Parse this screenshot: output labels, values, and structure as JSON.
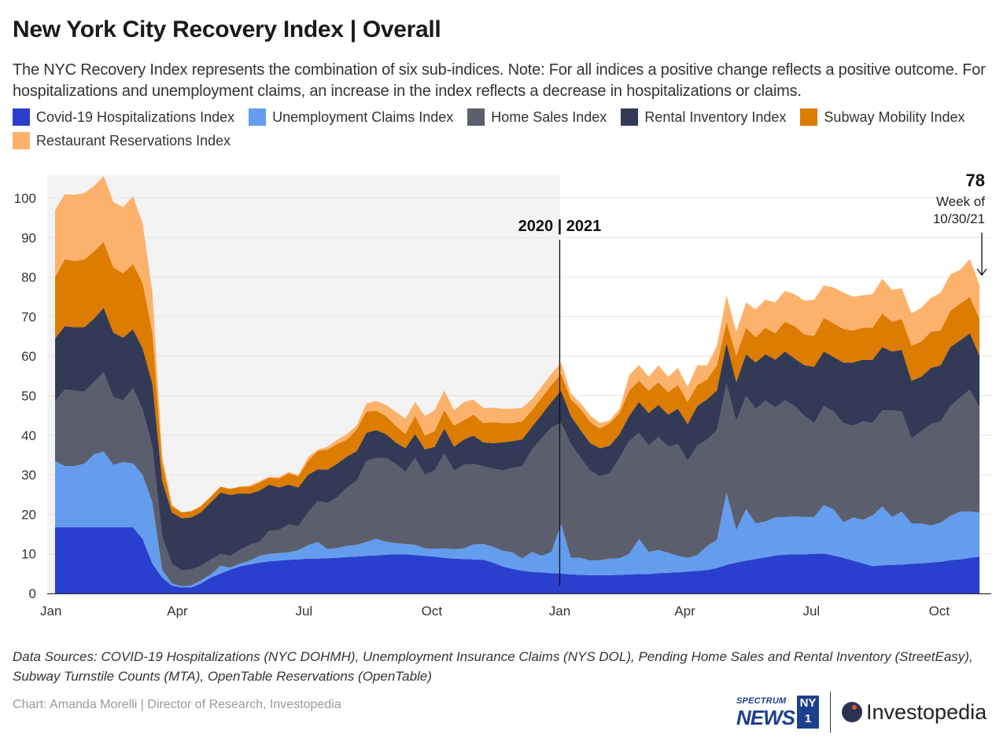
{
  "header": {
    "title": "New York City Recovery Index | Overall",
    "subtitle": "The NYC Recovery Index represents the combination of six sub-indices. Note: For all indices a positive change reflects a positive outcome. For hospitalizations and unemployment claims, an increase in the index reflects a decrease in hospitalizations or claims."
  },
  "chart_data": {
    "type": "area",
    "stacked": true,
    "title": "New York City Recovery Index | Overall",
    "xlabel": "",
    "ylabel": "",
    "ylim": [
      0,
      105
    ],
    "grid": true,
    "legend_placement": "top",
    "yticks": [
      0,
      10,
      20,
      30,
      40,
      50,
      60,
      70,
      80,
      90,
      100
    ],
    "xticks": [
      {
        "date": "2020-01-01",
        "label": "Jan"
      },
      {
        "date": "2020-04-01",
        "label": "Apr"
      },
      {
        "date": "2020-07-01",
        "label": "Jul"
      },
      {
        "date": "2020-10-01",
        "label": "Oct"
      },
      {
        "date": "2021-01-01",
        "label": "Jan"
      },
      {
        "date": "2021-04-01",
        "label": "Apr"
      },
      {
        "date": "2021-07-01",
        "label": "Jul"
      },
      {
        "date": "2021-10-01",
        "label": "Oct"
      }
    ],
    "shaded_period": {
      "from": "2020-01-01",
      "to": "2021-01-01",
      "color": "#f3f3f3"
    },
    "annotations": {
      "year_divider": {
        "date": "2021-01-01",
        "label": "2020 | 2021"
      },
      "latest": {
        "value": "78",
        "label_line1": "Week of",
        "label_line2": "10/30/21"
      }
    },
    "x": [
      "2020-01-04",
      "2020-01-11",
      "2020-01-18",
      "2020-01-25",
      "2020-02-01",
      "2020-02-08",
      "2020-02-15",
      "2020-02-22",
      "2020-02-29",
      "2020-03-07",
      "2020-03-14",
      "2020-03-21",
      "2020-03-28",
      "2020-04-04",
      "2020-04-11",
      "2020-04-18",
      "2020-04-25",
      "2020-05-02",
      "2020-05-09",
      "2020-05-16",
      "2020-05-23",
      "2020-05-30",
      "2020-06-06",
      "2020-06-13",
      "2020-06-20",
      "2020-06-27",
      "2020-07-04",
      "2020-07-11",
      "2020-07-18",
      "2020-07-25",
      "2020-08-01",
      "2020-08-08",
      "2020-08-15",
      "2020-08-22",
      "2020-08-29",
      "2020-09-05",
      "2020-09-12",
      "2020-09-19",
      "2020-09-26",
      "2020-10-03",
      "2020-10-10",
      "2020-10-17",
      "2020-10-24",
      "2020-10-31",
      "2020-11-07",
      "2020-11-14",
      "2020-11-21",
      "2020-11-28",
      "2020-12-05",
      "2020-12-12",
      "2020-12-19",
      "2020-12-26",
      "2021-01-02",
      "2021-01-09",
      "2021-01-16",
      "2021-01-23",
      "2021-01-30",
      "2021-02-06",
      "2021-02-13",
      "2021-02-20",
      "2021-02-27",
      "2021-03-06",
      "2021-03-13",
      "2021-03-20",
      "2021-03-27",
      "2021-04-03",
      "2021-04-10",
      "2021-04-17",
      "2021-04-24",
      "2021-05-01",
      "2021-05-08",
      "2021-05-15",
      "2021-05-22",
      "2021-05-29",
      "2021-06-05",
      "2021-06-12",
      "2021-06-19",
      "2021-06-26",
      "2021-07-03",
      "2021-07-10",
      "2021-07-17",
      "2021-07-24",
      "2021-07-31",
      "2021-08-07",
      "2021-08-14",
      "2021-08-21",
      "2021-08-28",
      "2021-09-04",
      "2021-09-11",
      "2021-09-18",
      "2021-09-25",
      "2021-10-02",
      "2021-10-09",
      "2021-10-16",
      "2021-10-23",
      "2021-10-30"
    ],
    "series": [
      {
        "name": "Covid-19 Hospitalizations Index",
        "color": "#2b3fce",
        "values": [
          16.7,
          16.7,
          16.7,
          16.7,
          16.7,
          16.7,
          16.7,
          16.7,
          16.7,
          13.8,
          7.5,
          4,
          2,
          1.5,
          1.5,
          2.5,
          4,
          5,
          6,
          6.8,
          7.3,
          7.8,
          8.1,
          8.3,
          8.5,
          8.6,
          8.8,
          8.8,
          8.9,
          9,
          9.2,
          9.3,
          9.5,
          9.6,
          9.8,
          9.9,
          9.9,
          9.7,
          9.5,
          9.3,
          9,
          8.8,
          8.7,
          8.6,
          8.5,
          7.8,
          6.8,
          6.2,
          5.7,
          5.4,
          5.3,
          5.1,
          5,
          4.8,
          4.7,
          4.6,
          4.6,
          4.6,
          4.7,
          4.8,
          4.9,
          4.9,
          5.1,
          5.2,
          5.3,
          5.5,
          5.7,
          5.9,
          6.4,
          7.2,
          7.8,
          8.3,
          8.7,
          9.1,
          9.6,
          9.8,
          9.9,
          9.9,
          10,
          10.1,
          9.6,
          9,
          8.3,
          7.6,
          6.9,
          7.1,
          7.2,
          7.3,
          7.5,
          7.6,
          7.8,
          8,
          8.4,
          8.6,
          9,
          9.3
        ]
      },
      {
        "name": "Unemployment Claims Index",
        "color": "#649cee",
        "values": [
          16.8,
          15.5,
          15.5,
          16.1,
          18.5,
          19.2,
          15.8,
          16.5,
          16.2,
          16.2,
          15.5,
          2,
          0.5,
          0.3,
          0.5,
          0.8,
          0.8,
          2,
          0.5,
          0.7,
          1,
          1.7,
          1.9,
          1.9,
          1.9,
          2.4,
          3.4,
          4.2,
          2.3,
          2.5,
          2.8,
          3,
          3.5,
          4.2,
          3.3,
          2.8,
          2.6,
          2.6,
          1.9,
          2,
          2.4,
          2.4,
          2.7,
          3.8,
          4,
          4,
          4,
          4.2,
          3.1,
          5.1,
          4.2,
          5.4,
          12.5,
          4.2,
          4.3,
          3.7,
          3.8,
          4.2,
          4.2,
          5.2,
          8.9,
          5.6,
          5.9,
          5.1,
          4.2,
          3.5,
          4,
          6.1,
          7.1,
          18.3,
          8.2,
          13,
          9,
          9.1,
          9.6,
          9.5,
          9.6,
          9.4,
          9.3,
          12.2,
          11.7,
          9,
          10.9,
          11,
          12.8,
          14.9,
          12.1,
          13.4,
          10.2,
          10.1,
          9.4,
          9.9,
          11.2,
          12.1,
          11.7,
          11.2
        ]
      },
      {
        "name": "Home Sales Index",
        "color": "#5b5e6c",
        "values": [
          15,
          19.4,
          19.1,
          18.2,
          18.3,
          20,
          17.1,
          15.6,
          19.1,
          16.5,
          14,
          8.5,
          5,
          4,
          4,
          3.7,
          3.7,
          3,
          3,
          3.5,
          4,
          3.5,
          5.8,
          5.8,
          7,
          6,
          8.3,
          10.3,
          11.7,
          12.8,
          14.8,
          16.2,
          20.5,
          20.5,
          21.2,
          20.1,
          18.2,
          22,
          18.6,
          19.8,
          23.9,
          19.9,
          21.1,
          20.4,
          19.6,
          19.8,
          20.3,
          21.4,
          23.3,
          25.9,
          29.7,
          31.5,
          25.6,
          28.8,
          25.3,
          22.7,
          21.2,
          21.6,
          25.4,
          28.5,
          26.8,
          26.9,
          28.6,
          26.8,
          28.3,
          24.5,
          27.7,
          26.9,
          27.8,
          27.5,
          27.5,
          28.6,
          29,
          30.6,
          27.8,
          29.5,
          27.9,
          25.6,
          23.8,
          25.1,
          24.7,
          25.1,
          23.2,
          24.9,
          23.4,
          24.3,
          27,
          25.3,
          21.5,
          23.3,
          25.6,
          25.6,
          27.8,
          28.8,
          30.9,
          26.5
        ]
      },
      {
        "name": "Rental Inventory Index",
        "color": "#323a56",
        "values": [
          16,
          16,
          16,
          16.3,
          16,
          16.3,
          16.3,
          15.9,
          14.8,
          15.5,
          16,
          14,
          13,
          13.2,
          13.2,
          13.5,
          14.5,
          15.5,
          15.4,
          14.3,
          12.9,
          13,
          11.7,
          10.8,
          10.1,
          9.8,
          9.5,
          8.1,
          8.4,
          8.5,
          7.8,
          7.5,
          7.1,
          7,
          6,
          5.4,
          6,
          6,
          6.4,
          6,
          6.4,
          6,
          6.4,
          7.1,
          6.1,
          6.4,
          7.1,
          6.7,
          6.8,
          5.7,
          6,
          6.4,
          8.2,
          7.1,
          7,
          7,
          7.1,
          7,
          6,
          6.4,
          7.8,
          8.2,
          8.1,
          8.1,
          8.9,
          9.3,
          10,
          10.2,
          10,
          10.3,
          9.9,
          10.6,
          11.7,
          11.7,
          12.1,
          12.4,
          12,
          12.8,
          14.2,
          13.8,
          13.8,
          15.3,
          16,
          15.6,
          16,
          16,
          14.9,
          15.6,
          14.6,
          13.8,
          14.2,
          14.2,
          14.9,
          14.5,
          14.2,
          13.1
        ]
      },
      {
        "name": "Subway Mobility Index",
        "color": "#dc7c00",
        "values": [
          15.5,
          16.9,
          16.8,
          17.2,
          17,
          16.7,
          16.5,
          16.3,
          16.5,
          16.5,
          13,
          4.5,
          1.5,
          1.5,
          1.6,
          1.5,
          1.5,
          1.5,
          1.5,
          1.7,
          1.8,
          2,
          1.8,
          2.2,
          2.9,
          2.8,
          3.5,
          4.6,
          5.1,
          5,
          4.3,
          5.5,
          5.4,
          4.9,
          4.6,
          4.2,
          3.6,
          4.6,
          3.5,
          3.9,
          4.6,
          5.3,
          4.9,
          5.3,
          4.9,
          5.3,
          4.9,
          4.6,
          4.6,
          4.2,
          4.3,
          4.3,
          4.2,
          4.2,
          5.4,
          5.3,
          5,
          5.7,
          5.3,
          6.4,
          5.4,
          5.7,
          5.7,
          5.7,
          6,
          5.6,
          5.3,
          5,
          6.4,
          5.4,
          6.7,
          6.7,
          6.4,
          6.7,
          6.7,
          7.5,
          8.2,
          7.8,
          7.8,
          8.5,
          8.5,
          8.5,
          8.1,
          8.1,
          8.1,
          8.5,
          7.5,
          7.8,
          8.8,
          8.9,
          9.2,
          8.8,
          9.2,
          9.3,
          9.2,
          9.3
        ]
      },
      {
        "name": "Restaurant Reservations Index",
        "color": "#fdb26c",
        "values": [
          17,
          16.5,
          16.7,
          16.8,
          16.5,
          16.7,
          16.6,
          16.7,
          17.1,
          15.2,
          10,
          2,
          0.5,
          0,
          0,
          0.2,
          0,
          0,
          0.1,
          0,
          0.3,
          0.4,
          0.2,
          0.4,
          0.3,
          0.4,
          1,
          0.4,
          0.7,
          1.1,
          1.4,
          1,
          2.1,
          2.4,
          2.8,
          3.6,
          3.9,
          3.5,
          5,
          5.3,
          5,
          3.9,
          4.6,
          3.8,
          3.8,
          3.7,
          3.6,
          3.6,
          3.5,
          2.8,
          2.8,
          2.8,
          2.9,
          1.5,
          1.4,
          1.7,
          1.4,
          0.7,
          1.1,
          3.9,
          4,
          3.5,
          4.3,
          3.9,
          4.3,
          3.9,
          5,
          3.6,
          4.9,
          6.7,
          6.1,
          6.4,
          7,
          7.1,
          7.8,
          7.8,
          8.1,
          8.5,
          9.2,
          8.2,
          9.1,
          9.2,
          8.5,
          8.2,
          8.5,
          8.8,
          8.1,
          7.8,
          8.2,
          8.5,
          8.5,
          9.6,
          9.2,
          8.5,
          9.6,
          8.6
        ]
      }
    ]
  },
  "footer": {
    "sources_line1": "Data Sources: COVID-19 Hospitalizations (NYC DOHMH), Unemployment Insurance Claims (NYS DOL), Pending Home Sales and Rental Inventory (StreetEasy),",
    "sources_line2": "Subway Turnstile Counts (MTA), OpenTable Reservations (OpenTable)",
    "credit": "Chart: Amanda Morelli | Director of Research, Investopedia",
    "logos": {
      "spectrum": "SPECTRUM",
      "news": "NEWS",
      "ny": "NY",
      "one": "1",
      "investopedia": "Investopedia"
    }
  }
}
